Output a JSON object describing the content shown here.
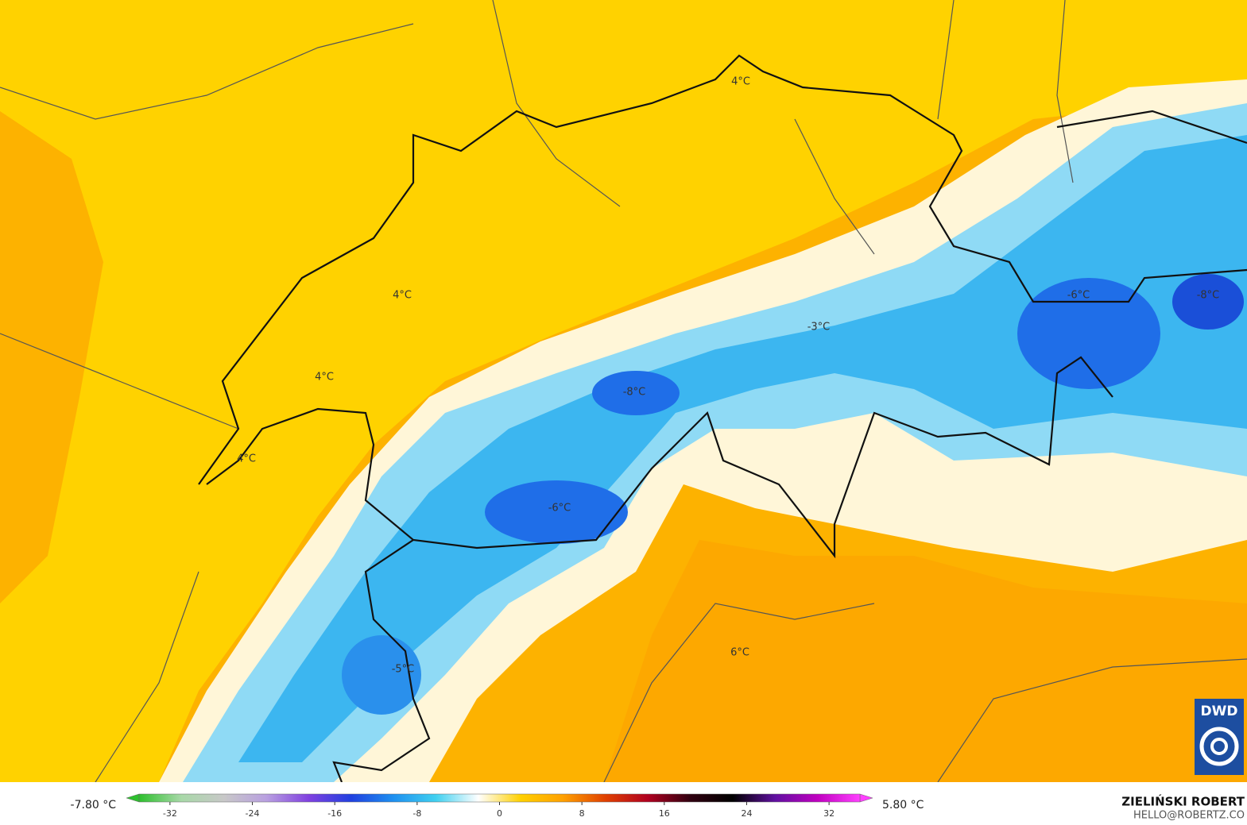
{
  "map": {
    "labels": [
      "4°C",
      "4°C",
      "4°C",
      "4°C",
      "-3°C",
      "-8°C",
      "-6°C",
      "-8°C",
      "-6°C",
      "-5°C",
      "6°C"
    ]
  },
  "colorbar": {
    "min_label": "-7.80 °C",
    "max_label": "5.80 °C",
    "lim": [
      -35,
      35
    ],
    "ticks": [
      -32,
      -24,
      -16,
      -8,
      0,
      8,
      16,
      24,
      32
    ],
    "colors": [
      "#2ec02e",
      "#a8d8a8",
      "#c8c8c8",
      "#b9a0e0",
      "#8040e0",
      "#2040e0",
      "#1e90f0",
      "#40d0f0",
      "#ffffff",
      "#ffd000",
      "#ffa000",
      "#e04000",
      "#b00020",
      "#300010",
      "#000000",
      "#6010a0",
      "#c000c0",
      "#ff40ff"
    ]
  },
  "credit": {
    "author": "ZIELIŃSKI ROBERT",
    "contact": "HELLO@ROBERTZ.CO",
    "logo": "DWD"
  }
}
